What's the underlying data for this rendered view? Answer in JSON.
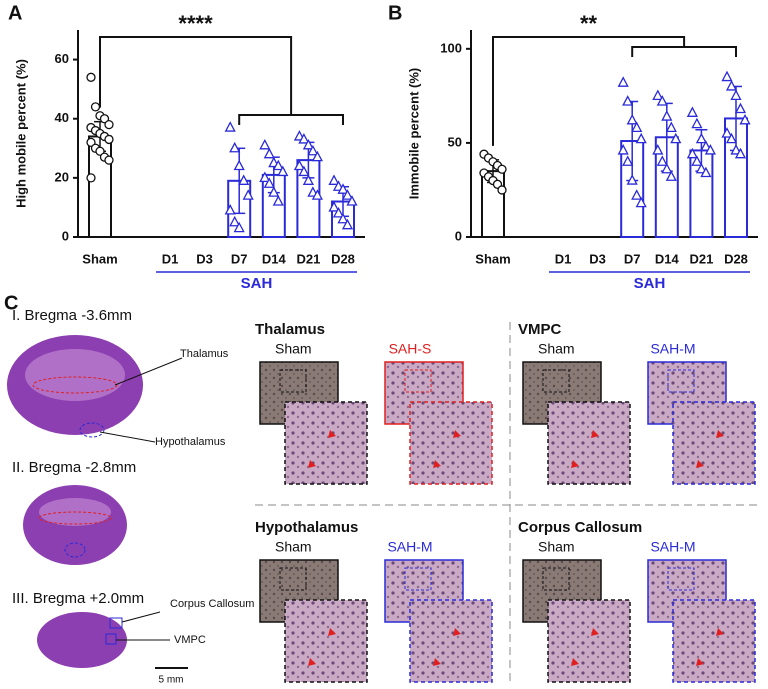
{
  "panel_labels": [
    "A",
    "B",
    "C"
  ],
  "chart_data": [
    {
      "type": "bar",
      "ylabel": "High mobile percent (%)",
      "categories": [
        "Sham",
        "D1",
        "D3",
        "D7",
        "D14",
        "D21",
        "D28"
      ],
      "values": [
        34,
        null,
        null,
        19,
        21,
        26,
        12
      ],
      "errors": [
        5,
        null,
        null,
        11,
        6,
        6,
        5
      ],
      "points": [
        [
          54,
          44,
          41,
          40,
          38,
          37,
          36,
          35,
          34,
          33,
          32,
          30,
          29,
          27,
          26,
          20
        ],
        [],
        [],
        [
          37,
          30,
          24,
          19,
          14,
          9,
          5,
          3
        ],
        [
          31,
          28,
          25,
          24,
          22,
          20,
          18,
          15,
          12
        ],
        [
          34,
          33,
          31,
          29,
          27,
          24,
          22,
          19,
          15,
          14
        ],
        [
          19,
          17,
          16,
          14,
          12,
          10,
          8,
          6,
          4
        ]
      ],
      "colors": [
        "#111111",
        "#2a2ad8",
        "#2a2ad8",
        "#2a2ad8",
        "#2a2ad8",
        "#2a2ad8",
        "#2a2ad8"
      ],
      "markers": [
        "circle",
        "triangle",
        "triangle",
        "triangle",
        "triangle",
        "triangle",
        "triangle"
      ],
      "group_label": "SAH",
      "significance": "****",
      "ylim": [
        0,
        70
      ],
      "yticks": [
        0,
        20,
        40,
        60
      ]
    },
    {
      "type": "bar",
      "ylabel": "Immobile percent (%)",
      "categories": [
        "Sham",
        "D1",
        "D3",
        "D7",
        "D14",
        "D21",
        "D28"
      ],
      "values": [
        35,
        null,
        null,
        51,
        53,
        46,
        63
      ],
      "errors": [
        6,
        null,
        null,
        21,
        18,
        11,
        17
      ],
      "points": [
        [
          44,
          42,
          40,
          38,
          36,
          34,
          32,
          30,
          28,
          25
        ],
        [],
        [],
        [
          82,
          72,
          62,
          58,
          52,
          46,
          40,
          30,
          22,
          18
        ],
        [
          75,
          72,
          64,
          58,
          52,
          46,
          40,
          36,
          32
        ],
        [
          66,
          60,
          52,
          48,
          46,
          44,
          40,
          36,
          34
        ],
        [
          85,
          80,
          75,
          68,
          62,
          55,
          52,
          46,
          44
        ]
      ],
      "colors": [
        "#111111",
        "#2a2ad8",
        "#2a2ad8",
        "#2a2ad8",
        "#2a2ad8",
        "#2a2ad8",
        "#2a2ad8"
      ],
      "markers": [
        "circle",
        "triangle",
        "triangle",
        "triangle",
        "triangle",
        "triangle",
        "triangle"
      ],
      "group_label": "SAH",
      "significance": "**",
      "ylim": [
        0,
        110
      ],
      "yticks": [
        0,
        50,
        100
      ]
    }
  ],
  "panel_c": {
    "sections": [
      {
        "label": "I. Bregma -3.6mm",
        "regions": [
          "Thalamus",
          "Hypothalamus"
        ]
      },
      {
        "label": "II. Bregma -2.8mm",
        "regions": []
      },
      {
        "label": "III. Bregma +2.0mm",
        "regions": [
          "Corpus Callosum",
          "VMPC"
        ]
      }
    ],
    "scale_bar": "5 mm",
    "regions": [
      {
        "title": "Thalamus",
        "control": "Sham",
        "model": "SAH-S",
        "model_color": "#e02020"
      },
      {
        "title": "VMPC",
        "control": "Sham",
        "model": "SAH-M",
        "model_color": "#2a2ad8"
      },
      {
        "title": "Hypothalamus",
        "control": "Sham",
        "model": "SAH-M",
        "model_color": "#2a2ad8"
      },
      {
        "title": "Corpus Callosum",
        "control": "Sham",
        "model": "SAH-M",
        "model_color": "#2a2ad8"
      }
    ]
  }
}
